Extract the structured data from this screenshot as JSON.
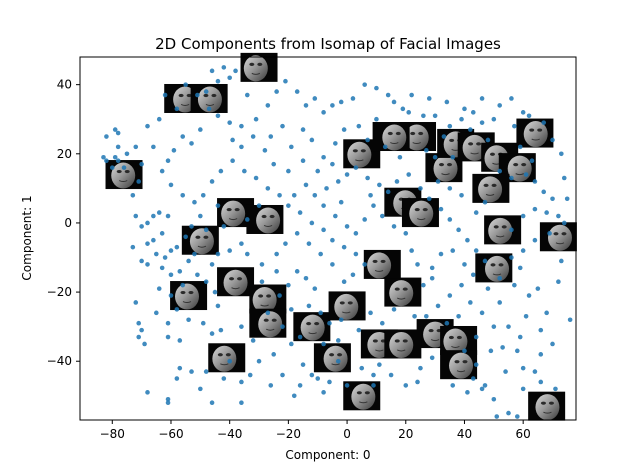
{
  "chart_data": {
    "type": "scatter",
    "title": "2D Components from Isomap of Facial Images",
    "xlabel": "Component: 0",
    "ylabel": "Component: 1",
    "xlim": [
      -91,
      78
    ],
    "ylim": [
      -57,
      48
    ],
    "xticks": [
      -80,
      -60,
      -40,
      -20,
      0,
      20,
      40,
      60
    ],
    "yticks": [
      -40,
      -20,
      0,
      20,
      40
    ],
    "xtick_labels": [
      "−80",
      "−60",
      "−40",
      "−20",
      "0",
      "20",
      "40",
      "60"
    ],
    "ytick_labels": [
      "−40",
      "−20",
      "0",
      "20",
      "40"
    ],
    "grid": false,
    "legend": "none",
    "point_color": "#1f77b4",
    "face_thumbnail_centers": [
      [
        -30,
        45
      ],
      [
        -56,
        36
      ],
      [
        -47,
        36
      ],
      [
        -76,
        14
      ],
      [
        -38,
        3
      ],
      [
        -28,
        1
      ],
      [
        -50,
        -5
      ],
      [
        -38,
        -17
      ],
      [
        -54,
        -21
      ],
      [
        -27,
        -22
      ],
      [
        -27,
        -29
      ],
      [
        -12,
        -30
      ],
      [
        0,
        -24
      ],
      [
        -41,
        -39
      ],
      [
        -5,
        -39
      ],
      [
        5,
        -50
      ],
      [
        11,
        -35
      ],
      [
        19,
        -20
      ],
      [
        12,
        -12
      ],
      [
        19,
        6
      ],
      [
        25,
        3
      ],
      [
        24,
        25
      ],
      [
        5,
        20
      ],
      [
        15,
        25
      ],
      [
        33,
        16
      ],
      [
        37,
        23
      ],
      [
        44,
        22
      ],
      [
        52,
        19
      ],
      [
        58,
        16
      ],
      [
        64,
        26
      ],
      [
        49,
        10
      ],
      [
        53,
        -2
      ],
      [
        50,
        -13
      ],
      [
        72,
        -4
      ],
      [
        30,
        -32
      ],
      [
        19,
        -35
      ],
      [
        38,
        -34
      ],
      [
        38,
        -41
      ],
      [
        68,
        -53
      ]
    ],
    "points": [
      [
        -82,
        25
      ],
      [
        -79,
        27
      ],
      [
        -78,
        26
      ],
      [
        -83,
        19
      ],
      [
        -82,
        18
      ],
      [
        -79,
        19
      ],
      [
        -78,
        18
      ],
      [
        -80,
        16
      ],
      [
        -76,
        16
      ],
      [
        -70,
        17
      ],
      [
        -71,
        12
      ],
      [
        -73,
        8
      ],
      [
        -72,
        2
      ],
      [
        -70,
        -1
      ],
      [
        -68,
        0
      ],
      [
        -66,
        2
      ],
      [
        -64,
        3
      ],
      [
        -61,
        2
      ],
      [
        -63,
        -3
      ],
      [
        -66,
        -5
      ],
      [
        -68,
        -6
      ],
      [
        -65,
        -9
      ],
      [
        -62,
        -10
      ],
      [
        -60,
        -8
      ],
      [
        -58,
        -7
      ],
      [
        -55,
        -4
      ],
      [
        -54,
        -11
      ],
      [
        -57,
        -14
      ],
      [
        -60,
        -15
      ],
      [
        -63,
        -13
      ],
      [
        -68,
        -12
      ],
      [
        -70,
        -11
      ],
      [
        -73,
        -7
      ],
      [
        -72,
        -23
      ],
      [
        -71,
        -29
      ],
      [
        -70,
        -31
      ],
      [
        -71,
        -33
      ],
      [
        -69,
        -35
      ],
      [
        -65,
        -26
      ],
      [
        -60,
        -21
      ],
      [
        -58,
        -25
      ],
      [
        -61,
        -29
      ],
      [
        -61,
        -33
      ],
      [
        -57,
        -34
      ],
      [
        -54,
        -28
      ],
      [
        -49,
        -29
      ],
      [
        -46,
        -32
      ],
      [
        -43,
        -31
      ],
      [
        -44,
        -24
      ],
      [
        -45,
        -20
      ],
      [
        -48,
        -17
      ],
      [
        -51,
        -15
      ],
      [
        -46,
        -12
      ],
      [
        -44,
        -9
      ],
      [
        -40,
        -8
      ],
      [
        -36,
        -6
      ],
      [
        -34,
        -9
      ],
      [
        -29,
        -12
      ],
      [
        -29,
        -17
      ],
      [
        -24,
        -14
      ],
      [
        -20,
        -18
      ],
      [
        -17,
        -14
      ],
      [
        -14,
        -16
      ],
      [
        -11,
        -19
      ],
      [
        -13,
        -24
      ],
      [
        -19,
        -25
      ],
      [
        -22,
        -30
      ],
      [
        -19,
        -35
      ],
      [
        -15,
        -41
      ],
      [
        -12,
        -44
      ],
      [
        -10,
        -45
      ],
      [
        -6,
        -46
      ],
      [
        -3,
        -40
      ],
      [
        -3,
        -34
      ],
      [
        -6,
        -29
      ],
      [
        -9,
        -26
      ],
      [
        -16,
        -33
      ],
      [
        -25,
        -38
      ],
      [
        -32,
        -34
      ],
      [
        -36,
        -30
      ],
      [
        -33,
        -44
      ],
      [
        -36,
        -46
      ],
      [
        -42,
        -45
      ],
      [
        -48,
        -43
      ],
      [
        -53,
        -43
      ],
      [
        -57,
        -42
      ],
      [
        -61,
        -51
      ],
      [
        -61,
        -52
      ],
      [
        -68,
        -49
      ],
      [
        -46,
        -52
      ],
      [
        -36,
        -52
      ],
      [
        -26,
        -47
      ],
      [
        -18,
        -50
      ],
      [
        -8,
        -49
      ],
      [
        0,
        -47
      ],
      [
        5,
        -42
      ],
      [
        9,
        -44
      ],
      [
        9,
        -47
      ],
      [
        11,
        -41
      ],
      [
        15,
        -44
      ],
      [
        20,
        -47
      ],
      [
        24,
        -46
      ],
      [
        25,
        -42
      ],
      [
        29,
        -39
      ],
      [
        36,
        -47
      ],
      [
        41,
        -49
      ],
      [
        43,
        -45
      ],
      [
        44,
        -41
      ],
      [
        46,
        -48
      ],
      [
        50,
        -51
      ],
      [
        55,
        -55
      ],
      [
        58,
        -56
      ],
      [
        51,
        -56
      ],
      [
        47,
        -47
      ],
      [
        53,
        -36
      ],
      [
        58,
        -37
      ],
      [
        60,
        -42
      ],
      [
        64,
        -43
      ],
      [
        66,
        -46
      ],
      [
        71,
        -48
      ],
      [
        76,
        -28
      ],
      [
        68,
        -26
      ],
      [
        62,
        -21
      ],
      [
        57,
        -18
      ],
      [
        59,
        -13
      ],
      [
        56,
        -10
      ],
      [
        60,
        -8
      ],
      [
        64,
        -5
      ],
      [
        69,
        -3
      ],
      [
        74,
        0
      ],
      [
        75,
        7
      ],
      [
        70,
        7
      ],
      [
        67,
        9
      ],
      [
        64,
        12
      ],
      [
        61,
        14
      ],
      [
        63,
        18
      ],
      [
        59,
        22
      ],
      [
        57,
        28
      ],
      [
        60,
        32
      ],
      [
        50,
        30
      ],
      [
        46,
        29
      ],
      [
        43,
        32
      ],
      [
        39,
        30
      ],
      [
        35,
        28
      ],
      [
        33,
        25
      ],
      [
        30,
        31
      ],
      [
        26,
        31
      ],
      [
        21,
        32
      ],
      [
        19,
        33
      ],
      [
        16,
        35
      ],
      [
        14,
        37
      ],
      [
        10,
        39
      ],
      [
        6,
        40
      ],
      [
        2,
        36
      ],
      [
        -2,
        35
      ],
      [
        -5,
        34
      ],
      [
        -8,
        32
      ],
      [
        -11,
        36
      ],
      [
        -14,
        34
      ],
      [
        -17,
        38
      ],
      [
        -21,
        41
      ],
      [
        -24,
        38
      ],
      [
        -27,
        34
      ],
      [
        -31,
        30
      ],
      [
        -36,
        28
      ],
      [
        -40,
        29
      ],
      [
        -44,
        31
      ],
      [
        -47,
        33
      ],
      [
        -50,
        27
      ],
      [
        -53,
        23
      ],
      [
        -56,
        25
      ],
      [
        -59,
        21
      ],
      [
        -61,
        18
      ],
      [
        -63,
        15
      ],
      [
        -60,
        11
      ],
      [
        -56,
        8
      ],
      [
        -52,
        6
      ],
      [
        -49,
        8
      ],
      [
        -46,
        12
      ],
      [
        -43,
        15
      ],
      [
        -39,
        18
      ],
      [
        -35,
        15
      ],
      [
        -31,
        13
      ],
      [
        -27,
        10
      ],
      [
        -23,
        8
      ],
      [
        -20,
        5
      ],
      [
        -16,
        3
      ],
      [
        -12,
        0
      ],
      [
        -8,
        -2
      ],
      [
        -5,
        -5
      ],
      [
        -1,
        -7
      ],
      [
        3,
        -9
      ],
      [
        6,
        -12
      ],
      [
        2,
        -15
      ],
      [
        -1,
        -17
      ],
      [
        -5,
        -12
      ],
      [
        -9,
        -9
      ],
      [
        -13,
        -6
      ],
      [
        -17,
        -3
      ],
      [
        -21,
        -6
      ],
      [
        -24,
        -9
      ],
      [
        -11,
        8
      ],
      [
        -7,
        10
      ],
      [
        -3,
        12
      ],
      [
        0,
        14
      ],
      [
        3,
        16
      ],
      [
        7,
        13
      ],
      [
        11,
        11
      ],
      [
        14,
        9
      ],
      [
        17,
        12
      ],
      [
        21,
        14
      ],
      [
        25,
        10
      ],
      [
        28,
        7
      ],
      [
        32,
        4
      ],
      [
        35,
        1
      ],
      [
        38,
        -2
      ],
      [
        41,
        -5
      ],
      [
        44,
        -8
      ],
      [
        47,
        -11
      ],
      [
        43,
        -15
      ],
      [
        39,
        -18
      ],
      [
        35,
        -21
      ],
      [
        31,
        -24
      ],
      [
        27,
        -27
      ],
      [
        23,
        -27
      ],
      [
        26,
        -18
      ],
      [
        29,
        -13
      ],
      [
        32,
        -9
      ],
      [
        36,
        -8
      ],
      [
        40,
        -12
      ],
      [
        44,
        3
      ],
      [
        47,
        6
      ],
      [
        39,
        8
      ],
      [
        35,
        10
      ],
      [
        31,
        12
      ],
      [
        -38,
        44
      ],
      [
        -40,
        42
      ],
      [
        -42,
        45
      ],
      [
        -44,
        41
      ],
      [
        -46,
        44
      ],
      [
        -48,
        38
      ],
      [
        -51,
        37
      ],
      [
        -55,
        40
      ],
      [
        -58,
        33
      ],
      [
        -62,
        37
      ],
      [
        -64,
        30
      ],
      [
        -34,
        37
      ],
      [
        -32,
        25
      ],
      [
        -36,
        22
      ],
      [
        -39,
        24
      ],
      [
        -26,
        25
      ],
      [
        -22,
        28
      ],
      [
        -19,
        22
      ],
      [
        -15,
        27
      ],
      [
        -12,
        24
      ],
      [
        -8,
        19
      ],
      [
        -4,
        23
      ],
      [
        -1,
        27
      ],
      [
        4,
        28
      ],
      [
        7,
        24
      ],
      [
        10,
        30
      ],
      [
        13,
        22
      ],
      [
        -28,
        21
      ],
      [
        -25,
        17
      ],
      [
        -20,
        15
      ],
      [
        -15,
        18
      ],
      [
        -10,
        15
      ],
      [
        -5,
        17
      ],
      [
        22,
        37
      ],
      [
        28,
        36
      ],
      [
        34,
        35
      ],
      [
        40,
        33
      ],
      [
        46,
        36
      ],
      [
        52,
        34
      ],
      [
        56,
        36
      ],
      [
        62,
        31
      ],
      [
        67,
        29
      ],
      [
        70,
        24
      ],
      [
        73,
        20
      ],
      [
        74,
        13
      ],
      [
        73,
        -11
      ],
      [
        72,
        -17
      ],
      [
        65,
        -19
      ],
      [
        61,
        -27
      ],
      [
        55,
        -30
      ],
      [
        50,
        -30
      ],
      [
        46,
        -26
      ],
      [
        42,
        -23
      ],
      [
        38,
        -27
      ],
      [
        34,
        -29
      ],
      [
        29,
        -16
      ],
      [
        24,
        -12
      ],
      [
        22,
        -8
      ],
      [
        20,
        -3
      ],
      [
        16,
        -1
      ],
      [
        12,
        2
      ],
      [
        9,
        5
      ],
      [
        6,
        1
      ],
      [
        3,
        -3
      ],
      [
        0,
        -1
      ],
      [
        -4,
        2
      ],
      [
        -8,
        5
      ],
      [
        -66,
        22
      ],
      [
        -68,
        28
      ],
      [
        -72,
        22
      ],
      [
        -75,
        20
      ],
      [
        -78,
        22
      ],
      [
        -48,
        -2
      ],
      [
        -52,
        -9
      ],
      [
        -56,
        -18
      ],
      [
        -64,
        -19
      ],
      [
        -58,
        -45
      ],
      [
        -50,
        -48
      ],
      [
        -40,
        -40
      ],
      [
        -30,
        -40
      ],
      [
        -22,
        -44
      ],
      [
        -16,
        -47
      ],
      [
        -27,
        -26
      ],
      [
        -23,
        -21
      ],
      [
        -8,
        -35
      ],
      [
        -2,
        -28
      ],
      [
        4,
        -31
      ],
      [
        8,
        -26
      ],
      [
        12,
        -29
      ],
      [
        16,
        -25
      ],
      [
        40,
        -37
      ],
      [
        44,
        -33
      ],
      [
        49,
        -37
      ],
      [
        54,
        -43
      ],
      [
        60,
        -48
      ],
      [
        66,
        -38
      ],
      [
        70,
        -35
      ],
      [
        66,
        -31
      ],
      [
        59,
        -33
      ],
      [
        52,
        -23
      ],
      [
        48,
        -19
      ],
      [
        52,
        -16
      ],
      [
        56,
        -2
      ],
      [
        60,
        2
      ],
      [
        64,
        4
      ],
      [
        68,
        3
      ],
      [
        72,
        2
      ],
      [
        56,
        13
      ],
      [
        52,
        15
      ],
      [
        48,
        24
      ],
      [
        42,
        27
      ],
      [
        36,
        19
      ],
      [
        30,
        19
      ],
      [
        27,
        21
      ],
      [
        18,
        19
      ],
      [
        8,
        8
      ],
      [
        -2,
        6
      ],
      [
        -14,
        11
      ],
      [
        -18,
        8
      ],
      [
        -30,
        5
      ],
      [
        -34,
        1
      ],
      [
        -42,
        -1
      ],
      [
        -44,
        5
      ],
      [
        -50,
        2
      ],
      [
        -53,
        -1
      ]
    ]
  }
}
